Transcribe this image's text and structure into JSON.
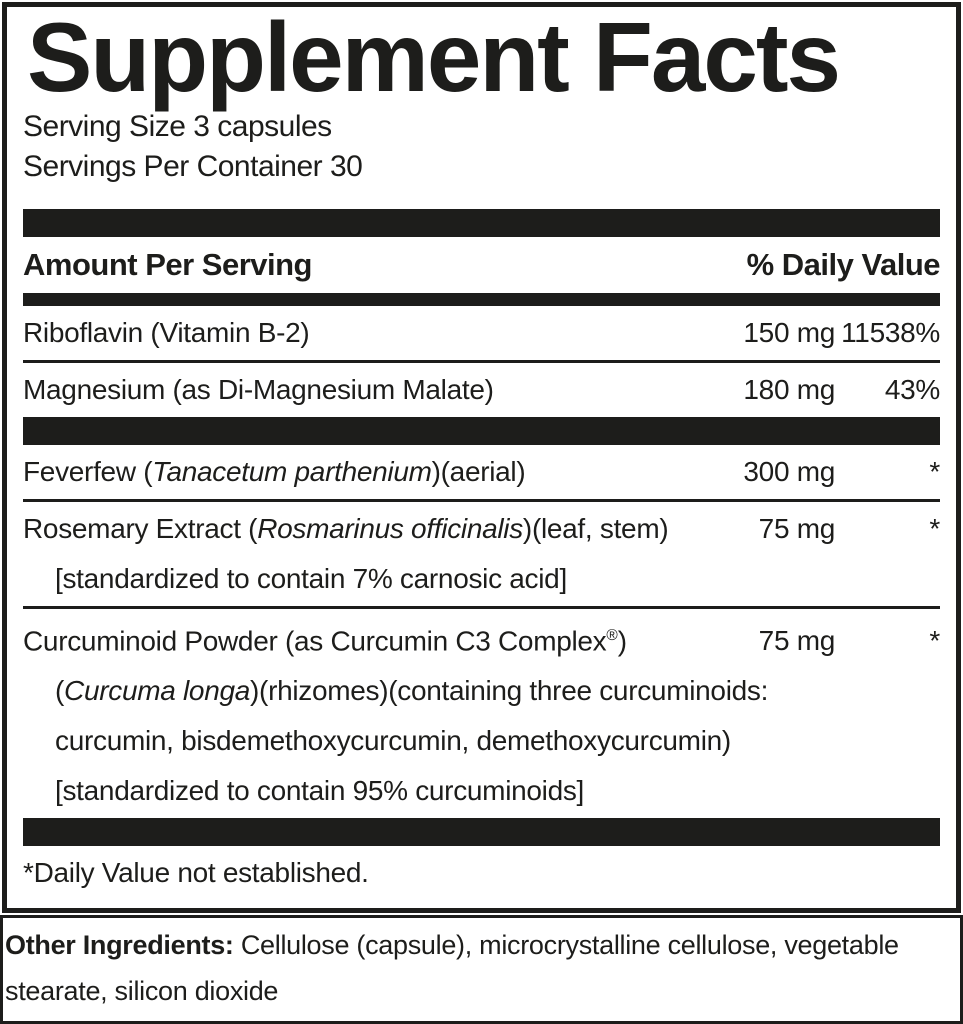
{
  "colors": {
    "ink": "#1d1d1b",
    "background": "#ffffff"
  },
  "panel": {
    "title": "Supplement Facts",
    "serving_lines": [
      "Serving Size 3 capsules",
      "Servings Per Container 30"
    ],
    "header": {
      "amount_label": "Amount Per Serving",
      "dv_label": "% Daily Value"
    },
    "sections": [
      {
        "rows": [
          {
            "name_parts": [
              {
                "text": "Riboflavin (Vitamin B-2)"
              }
            ],
            "amount": "150 mg",
            "dv": "11538%"
          },
          {
            "name_parts": [
              {
                "text": "Magnesium (as Di-Magnesium Malate)"
              }
            ],
            "amount": "180 mg",
            "dv": "43%"
          }
        ]
      },
      {
        "rows": [
          {
            "name_parts": [
              {
                "text": "Feverfew ("
              },
              {
                "text": "Tanacetum parthenium",
                "style": "italic"
              },
              {
                "text": ")(aerial)"
              }
            ],
            "amount": "300 mg",
            "dv": "*"
          },
          {
            "name_parts": [
              {
                "text": "Rosemary Extract ("
              },
              {
                "text": "Rosmarinus officinalis",
                "style": "italic"
              },
              {
                "text": ")(leaf, stem)"
              }
            ],
            "amount": "75 mg",
            "dv": "*",
            "sublines": [
              [
                {
                  "text": "[standardized to contain 7% carnosic acid]"
                }
              ]
            ]
          },
          {
            "name_parts": [
              {
                "text": "Curcuminoid Powder (as Curcumin C3 Complex"
              },
              {
                "text": "®",
                "style": "sup"
              },
              {
                "text": ")"
              }
            ],
            "amount": "75 mg",
            "dv": "*",
            "sublines": [
              [
                {
                  "text": "("
                },
                {
                  "text": "Curcuma longa",
                  "style": "italic"
                },
                {
                  "text": ")(rhizomes)(containing three curcuminoids:"
                }
              ],
              [
                {
                  "text": "curcumin, bisdemethoxycurcumin, demethoxycurcumin)"
                }
              ],
              [
                {
                  "text": "[standardized to contain 95% curcuminoids]"
                }
              ]
            ]
          }
        ]
      }
    ],
    "footnote": "*Daily Value not established."
  },
  "other_ingredients": {
    "label": "Other Ingredients:",
    "text": " Cellulose (capsule), microcrystalline cellulose, vegetable stearate, silicon dioxide"
  }
}
